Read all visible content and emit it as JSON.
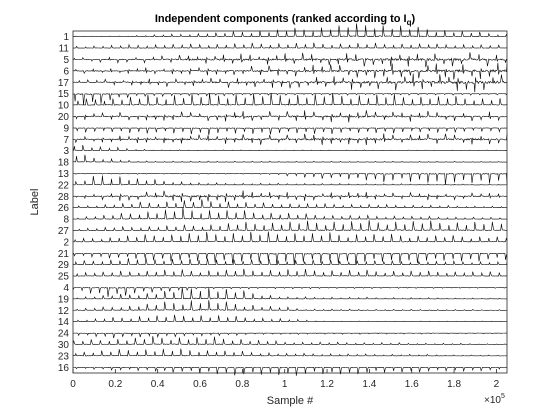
{
  "chart_data": {
    "type": "line",
    "title": {
      "main": "Independent components (ranked according to I",
      "subscript": "q",
      "closing": ")"
    },
    "xlabel": "Sample #",
    "ylabel": "Label",
    "xlim": [
      0,
      205000
    ],
    "x_ticks": [
      0,
      0.2,
      0.4,
      0.6,
      0.8,
      1,
      1.2,
      1.4,
      1.6,
      1.8,
      2
    ],
    "x_tick_labels": [
      "0",
      "0.2",
      "0.4",
      "0.6",
      "0.8",
      "1",
      "1.2",
      "1.4",
      "1.6",
      "1.8",
      "2"
    ],
    "x_exponent": {
      "base": "×10",
      "power": "5"
    },
    "grid": false,
    "trace_color": "#000000",
    "series": [
      {
        "label": "1",
        "polarity": 1,
        "env": [
          [
            0.2,
            0.05
          ],
          [
            0.6,
            0.25
          ],
          [
            1.0,
            0.55
          ],
          [
            1.4,
            1.0
          ],
          [
            1.7,
            0.6
          ],
          [
            2.05,
            0.15
          ]
        ]
      },
      {
        "label": "11",
        "polarity": 1,
        "env": [
          [
            0.0,
            0.15
          ],
          [
            0.5,
            0.3
          ],
          [
            1.0,
            0.4
          ],
          [
            1.6,
            0.35
          ],
          [
            2.05,
            0.2
          ]
        ]
      },
      {
        "label": "5",
        "polarity": 0,
        "env": [
          [
            0.0,
            0.2
          ],
          [
            0.6,
            0.5
          ],
          [
            1.2,
            0.7
          ],
          [
            1.8,
            0.8
          ],
          [
            2.05,
            0.6
          ]
        ]
      },
      {
        "label": "6",
        "polarity": 0,
        "env": [
          [
            0.0,
            0.2
          ],
          [
            0.6,
            0.4
          ],
          [
            1.2,
            0.65
          ],
          [
            1.8,
            0.85
          ],
          [
            2.05,
            0.9
          ]
        ]
      },
      {
        "label": "17",
        "polarity": 0,
        "env": [
          [
            0.0,
            0.25
          ],
          [
            0.8,
            0.55
          ],
          [
            1.4,
            0.75
          ],
          [
            1.9,
            1.0
          ],
          [
            2.05,
            0.95
          ]
        ]
      },
      {
        "label": "15",
        "polarity": -1,
        "env": [
          [
            0.0,
            0.9
          ],
          [
            0.1,
            0.8
          ],
          [
            0.3,
            0.2
          ],
          [
            1.0,
            0.1
          ],
          [
            2.05,
            0.1
          ]
        ]
      },
      {
        "label": "10",
        "polarity": 1,
        "env": [
          [
            0.0,
            0.4
          ],
          [
            0.5,
            0.8
          ],
          [
            1.0,
            0.85
          ],
          [
            1.5,
            0.75
          ],
          [
            2.05,
            0.5
          ]
        ]
      },
      {
        "label": "20",
        "polarity": 0,
        "env": [
          [
            0.0,
            0.35
          ],
          [
            0.6,
            0.5
          ],
          [
            1.2,
            0.6
          ],
          [
            2.05,
            0.45
          ]
        ]
      },
      {
        "label": "9",
        "polarity": -1,
        "env": [
          [
            0.0,
            0.3
          ],
          [
            0.6,
            0.5
          ],
          [
            1.2,
            0.45
          ],
          [
            2.05,
            0.3
          ]
        ]
      },
      {
        "label": "7",
        "polarity": 0,
        "env": [
          [
            0.0,
            0.3
          ],
          [
            0.8,
            0.55
          ],
          [
            1.4,
            0.6
          ],
          [
            2.05,
            0.55
          ]
        ]
      },
      {
        "label": "3",
        "polarity": 1,
        "env": [
          [
            0.0,
            0.6
          ],
          [
            0.1,
            0.3
          ],
          [
            0.4,
            0.06
          ],
          [
            2.05,
            0.05
          ]
        ]
      },
      {
        "label": "18",
        "polarity": 1,
        "env": [
          [
            0.0,
            0.7
          ],
          [
            0.1,
            0.4
          ],
          [
            0.3,
            0.08
          ],
          [
            2.05,
            0.05
          ]
        ]
      },
      {
        "label": "13",
        "polarity": -1,
        "env": [
          [
            0.0,
            0.05
          ],
          [
            0.9,
            0.05
          ],
          [
            1.1,
            0.3
          ],
          [
            1.5,
            0.6
          ],
          [
            1.8,
            0.8
          ],
          [
            2.05,
            0.7
          ]
        ]
      },
      {
        "label": "22",
        "polarity": 1,
        "env": [
          [
            0.0,
            0.2
          ],
          [
            0.15,
            0.9
          ],
          [
            0.3,
            0.5
          ],
          [
            0.6,
            0.15
          ],
          [
            2.05,
            0.05
          ]
        ]
      },
      {
        "label": "28",
        "polarity": 0,
        "env": [
          [
            0.0,
            0.15
          ],
          [
            0.3,
            0.5
          ],
          [
            0.6,
            0.6
          ],
          [
            1.0,
            0.45
          ],
          [
            2.05,
            0.3
          ]
        ]
      },
      {
        "label": "26",
        "polarity": 1,
        "env": [
          [
            0.0,
            0.1
          ],
          [
            0.3,
            0.4
          ],
          [
            0.6,
            0.6
          ],
          [
            0.9,
            0.35
          ],
          [
            2.05,
            0.1
          ]
        ]
      },
      {
        "label": "8",
        "polarity": 1,
        "env": [
          [
            0.0,
            0.1
          ],
          [
            0.3,
            0.5
          ],
          [
            0.5,
            0.8
          ],
          [
            0.8,
            0.6
          ],
          [
            1.2,
            0.3
          ],
          [
            2.05,
            0.1
          ]
        ]
      },
      {
        "label": "27",
        "polarity": 1,
        "env": [
          [
            0.0,
            0.15
          ],
          [
            0.5,
            0.4
          ],
          [
            1.0,
            0.7
          ],
          [
            1.5,
            0.75
          ],
          [
            2.05,
            0.6
          ]
        ]
      },
      {
        "label": "2",
        "polarity": 1,
        "env": [
          [
            0.0,
            0.2
          ],
          [
            0.4,
            0.6
          ],
          [
            0.8,
            0.75
          ],
          [
            1.2,
            0.65
          ],
          [
            2.05,
            0.4
          ]
        ]
      },
      {
        "label": "21",
        "polarity": -1,
        "env": [
          [
            0.0,
            0.2
          ],
          [
            0.5,
            0.6
          ],
          [
            1.0,
            0.8
          ],
          [
            1.5,
            0.7
          ],
          [
            2.05,
            0.5
          ]
        ]
      },
      {
        "label": "29",
        "polarity": 1,
        "env": [
          [
            0.0,
            0.25
          ],
          [
            0.3,
            0.5
          ],
          [
            0.8,
            0.4
          ],
          [
            2.05,
            0.2
          ]
        ]
      },
      {
        "label": "25",
        "polarity": 1,
        "env": [
          [
            0.0,
            0.25
          ],
          [
            0.4,
            0.45
          ],
          [
            1.0,
            0.5
          ],
          [
            2.05,
            0.3
          ]
        ]
      },
      {
        "label": "4",
        "polarity": -1,
        "env": [
          [
            0.0,
            0.2
          ],
          [
            0.15,
            0.7
          ],
          [
            0.3,
            0.5
          ],
          [
            0.6,
            0.1
          ],
          [
            2.05,
            0.05
          ]
        ]
      },
      {
        "label": "19",
        "polarity": 1,
        "env": [
          [
            0.0,
            0.1
          ],
          [
            0.4,
            0.5
          ],
          [
            0.6,
            1.0
          ],
          [
            0.8,
            0.6
          ],
          [
            1.0,
            0.15
          ],
          [
            2.05,
            0.05
          ]
        ]
      },
      {
        "label": "12",
        "polarity": 1,
        "env": [
          [
            0.0,
            0.1
          ],
          [
            0.3,
            0.4
          ],
          [
            0.6,
            0.9
          ],
          [
            0.8,
            0.5
          ],
          [
            1.1,
            0.1
          ],
          [
            2.05,
            0.05
          ]
        ]
      },
      {
        "label": "14",
        "polarity": 1,
        "env": [
          [
            0.0,
            0.1
          ],
          [
            0.3,
            0.45
          ],
          [
            0.6,
            0.55
          ],
          [
            0.9,
            0.3
          ],
          [
            1.2,
            0.05
          ],
          [
            2.05,
            0.05
          ]
        ]
      },
      {
        "label": "24",
        "polarity": -1,
        "env": [
          [
            0.0,
            0.15
          ],
          [
            0.2,
            0.35
          ],
          [
            0.5,
            0.25
          ],
          [
            0.9,
            0.1
          ],
          [
            2.05,
            0.05
          ]
        ]
      },
      {
        "label": "30",
        "polarity": 1,
        "env": [
          [
            0.0,
            0.3
          ],
          [
            0.4,
            0.6
          ],
          [
            0.7,
            0.55
          ],
          [
            1.0,
            0.2
          ],
          [
            2.05,
            0.05
          ]
        ]
      },
      {
        "label": "23",
        "polarity": 1,
        "env": [
          [
            0.0,
            0.3
          ],
          [
            0.3,
            0.55
          ],
          [
            0.6,
            0.5
          ],
          [
            1.0,
            0.2
          ],
          [
            2.05,
            0.05
          ]
        ]
      },
      {
        "label": "16",
        "polarity": -1,
        "env": [
          [
            0.0,
            0.1
          ],
          [
            0.4,
            0.3
          ],
          [
            0.8,
            0.6
          ],
          [
            1.2,
            0.55
          ],
          [
            1.6,
            0.35
          ],
          [
            2.05,
            0.2
          ]
        ]
      }
    ]
  }
}
